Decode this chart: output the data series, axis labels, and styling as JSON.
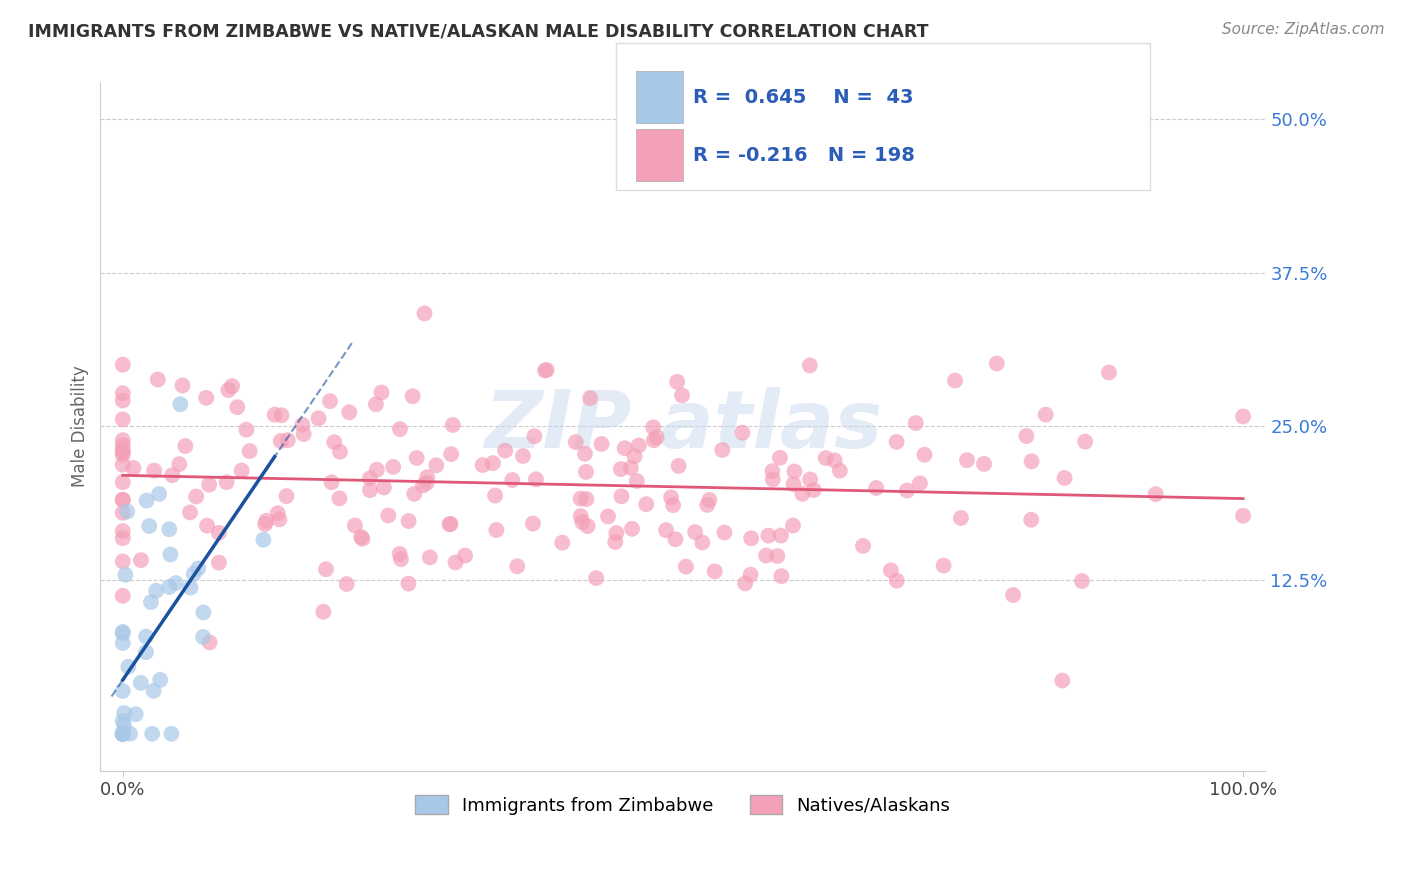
{
  "title": "IMMIGRANTS FROM ZIMBABWE VS NATIVE/ALASKAN MALE DISABILITY CORRELATION CHART",
  "source": "Source: ZipAtlas.com",
  "ylabel": "Male Disability",
  "xlim": [
    -2,
    102
  ],
  "ylim": [
    -3,
    53
  ],
  "yticks": [
    0,
    12.5,
    25.0,
    37.5,
    50.0
  ],
  "ytick_labels_right": [
    "",
    "12.5%",
    "25.0%",
    "37.5%",
    "50.0%"
  ],
  "xtick_labels": [
    "0.0%",
    "100.0%"
  ],
  "blue_color": "#a8c8e8",
  "blue_line_color": "#1a52a0",
  "pink_color": "#f4a0b8",
  "pink_line_color": "#e05878",
  "legend_r_color": "#333333",
  "legend_val_color": "#2b5cb8",
  "legend_n_color": "#333333",
  "background_color": "#ffffff",
  "grid_color": "#cccccc",
  "title_color": "#333333",
  "watermark_color": "#c8d8f0",
  "seed": 12,
  "blue_N": 43,
  "pink_N": 198,
  "blue_R": 0.645,
  "pink_R": -0.216,
  "legend_blue_r_val": "0.645",
  "legend_blue_n_val": "43",
  "legend_pink_r_val": "-0.216",
  "legend_pink_n_val": "198",
  "blue_label": "Immigrants from Zimbabwe",
  "pink_label": "Natives/Alaskans"
}
